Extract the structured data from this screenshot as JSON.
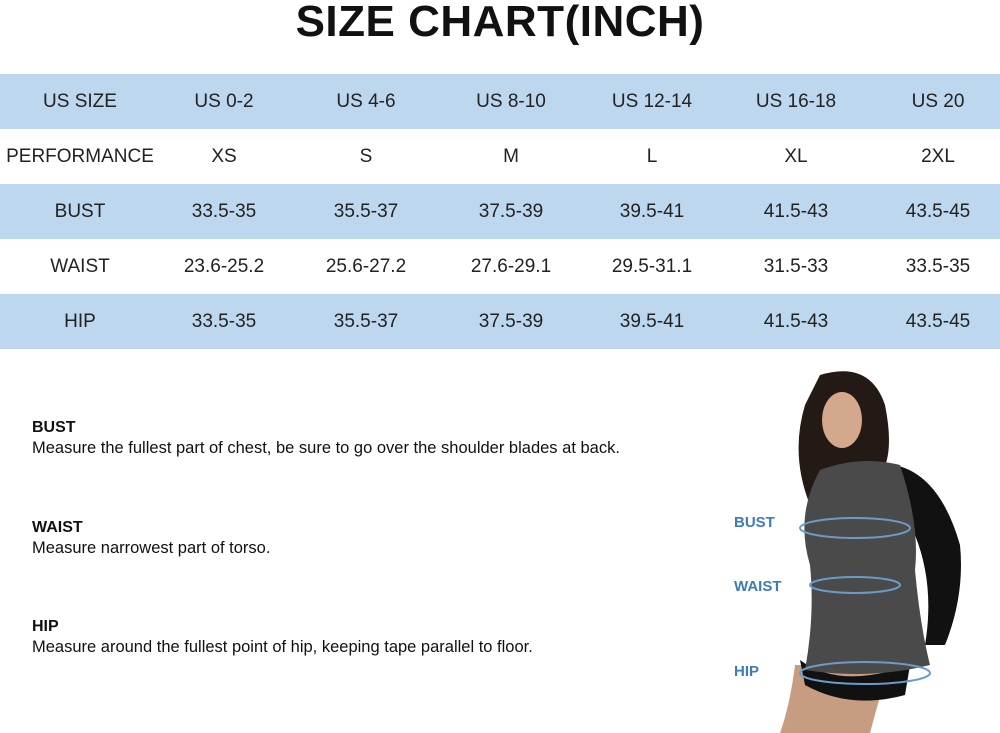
{
  "title": "SIZE CHART(INCH)",
  "table": {
    "rows": [
      {
        "label": "US SIZE",
        "values": [
          "US 0-2",
          "US 4-6",
          "US 8-10",
          "US 12-14",
          "US 16-18",
          "US 20"
        ]
      },
      {
        "label": "PERFORMANCE",
        "values": [
          "XS",
          "S",
          "M",
          "L",
          "XL",
          "2XL"
        ]
      },
      {
        "label": "BUST",
        "values": [
          "33.5-35",
          "35.5-37",
          "37.5-39",
          "39.5-41",
          "41.5-43",
          "43.5-45"
        ]
      },
      {
        "label": "WAIST",
        "values": [
          "23.6-25.2",
          "25.6-27.2",
          "27.6-29.1",
          "29.5-31.1",
          "31.5-33",
          "33.5-35"
        ]
      },
      {
        "label": "HIP",
        "values": [
          "33.5-35",
          "35.5-37",
          "37.5-39",
          "39.5-41",
          "41.5-43",
          "43.5-45"
        ]
      }
    ]
  },
  "instructions": [
    {
      "heading": "BUST",
      "text": "Measure the fullest part of chest, be sure to go over the shoulder blades at back."
    },
    {
      "heading": "WAIST",
      "text": "Measure narrowest part of torso."
    },
    {
      "heading": "HIP",
      "text": "Measure around the fullest point of hip, keeping tape parallel to floor."
    }
  ],
  "figure_labels": {
    "bust": "BUST",
    "waist": "WAIST",
    "hip": "HIP"
  },
  "colors": {
    "band": "#bdd7ee",
    "figure_label": "#3d7cb5"
  }
}
